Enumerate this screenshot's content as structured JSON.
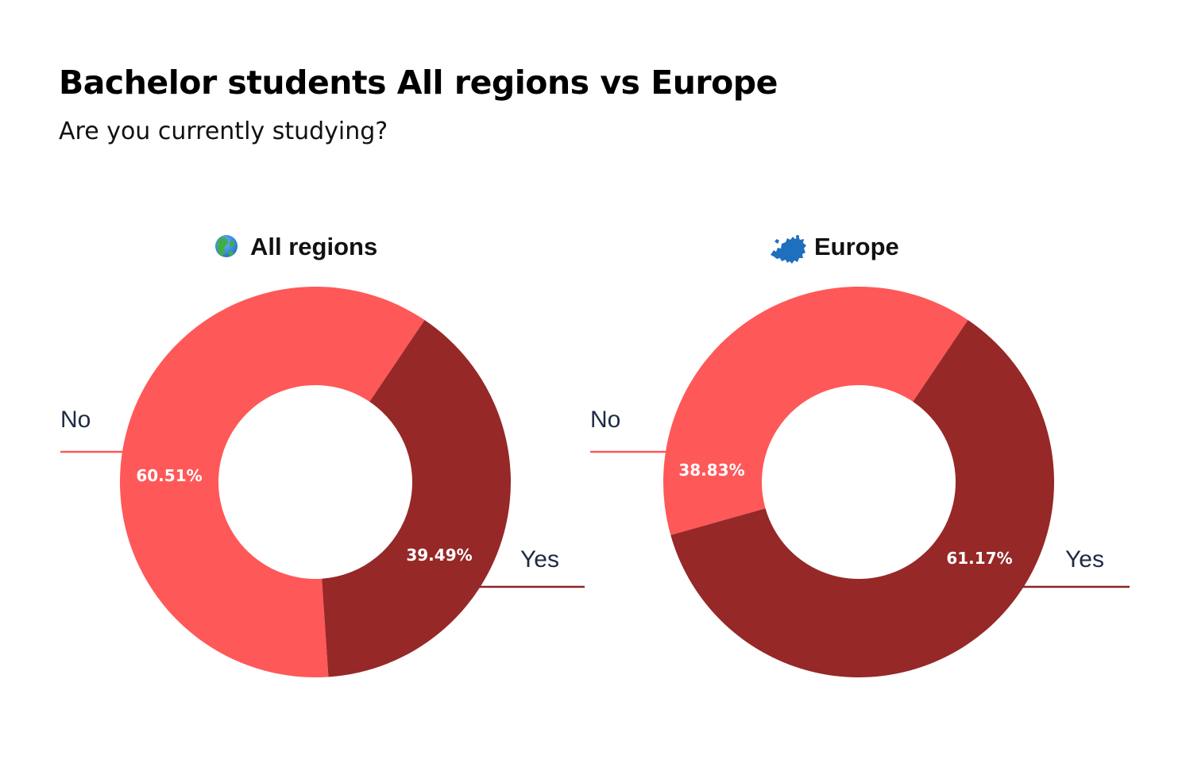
{
  "header": {
    "title": "Bachelor students All regions vs Europe",
    "subtitle": "Are you currently studying?"
  },
  "colors": {
    "no": "#ff5858",
    "yes": "#962828",
    "no_line": "#ff5858",
    "yes_line": "#8b2525"
  },
  "chart_data": [
    {
      "type": "pie",
      "donut": true,
      "title": "All regions",
      "title_icon": "globe-icon",
      "categories": [
        "No",
        "Yes"
      ],
      "values": [
        60.51,
        39.49
      ],
      "value_labels": [
        "60.51%",
        "39.49%"
      ]
    },
    {
      "type": "pie",
      "donut": true,
      "title": "Europe",
      "title_icon": "europe-map-icon",
      "categories": [
        "No",
        "Yes"
      ],
      "values": [
        38.83,
        61.17
      ],
      "value_labels": [
        "38.83%",
        "61.17%"
      ]
    }
  ]
}
